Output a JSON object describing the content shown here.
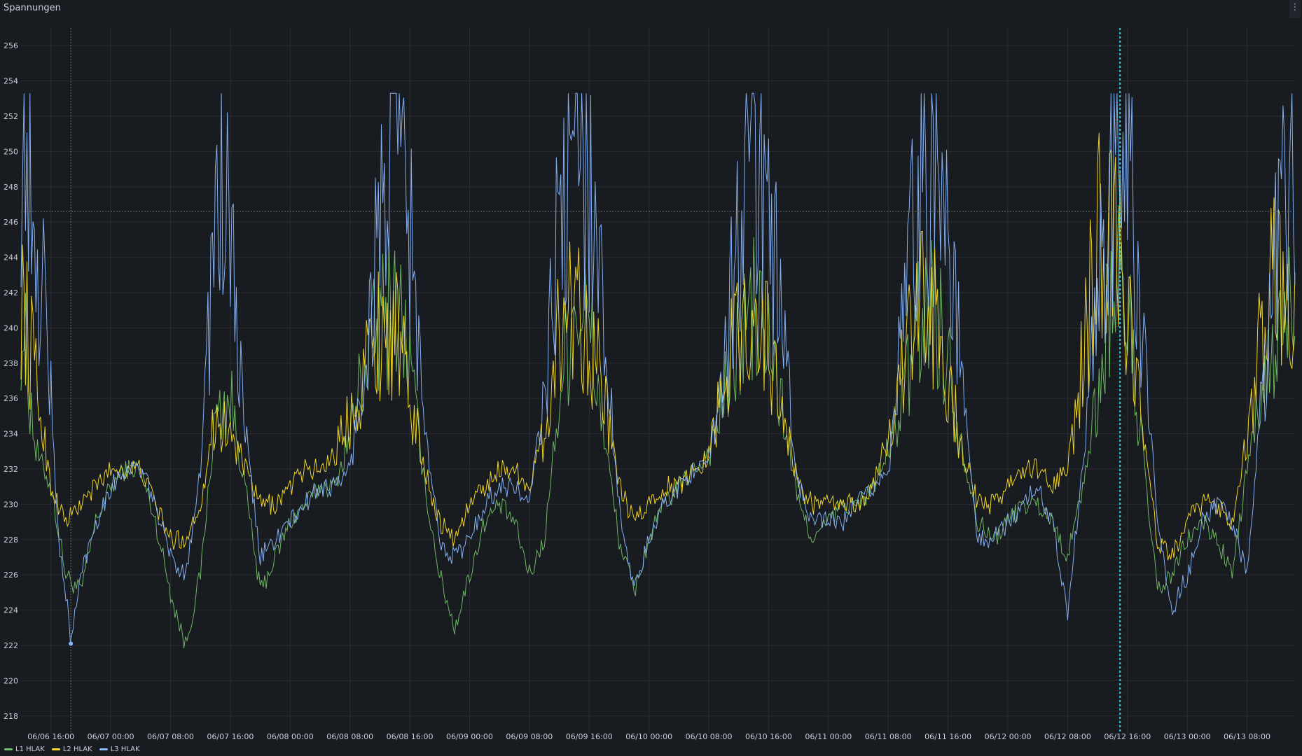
{
  "panel": {
    "title": "Spannungen",
    "menu_icon": "kebab-menu-icon"
  },
  "colors": {
    "background": "#181b1f",
    "grid": "#2a2d33",
    "L1": "#73bf69",
    "L2": "#fade2a",
    "L3": "#8ab8ff",
    "cursor": "#33d1e5",
    "hover_line": "#6e7280"
  },
  "chart_data": {
    "type": "line",
    "title": "Spannungen",
    "xlabel": "",
    "ylabel": "",
    "ylim": [
      217,
      257
    ],
    "yticks": [
      218,
      220,
      222,
      224,
      226,
      228,
      230,
      232,
      234,
      236,
      238,
      240,
      242,
      244,
      246,
      248,
      250,
      252,
      254,
      256
    ],
    "x_start": "06/06 12:00",
    "x_end": "06/13 14:30",
    "xticks": [
      "06/06 16:00",
      "06/07 00:00",
      "06/07 08:00",
      "06/07 16:00",
      "06/08 00:00",
      "06/08 08:00",
      "06/08 16:00",
      "06/09 00:00",
      "06/09 08:00",
      "06/09 16:00",
      "06/10 00:00",
      "06/10 08:00",
      "06/10 16:00",
      "06/11 00:00",
      "06/11 08:00",
      "06/11 16:00",
      "06/12 00:00",
      "06/12 08:00",
      "06/12 16:00",
      "06/13 00:00",
      "06/13 08:00"
    ],
    "grid": true,
    "legend_position": "bottom-left",
    "cursor_vertical_time": "06/12 15:00",
    "hover_vertical_time": "06/06 18:40",
    "hover_horizontal_value": 246.6,
    "series": [
      {
        "name": "L1 HLAK",
        "color": "#73bf69",
        "points": [
          [
            "06/06 12:00",
            241
          ],
          [
            "06/06 14:00",
            233
          ],
          [
            "06/06 16:00",
            231
          ],
          [
            "06/06 18:00",
            226
          ],
          [
            "06/06 20:00",
            225
          ],
          [
            "06/06 22:00",
            229
          ],
          [
            "06/07 00:00",
            231
          ],
          [
            "06/07 02:00",
            232
          ],
          [
            "06/07 04:00",
            232
          ],
          [
            "06/07 06:00",
            229
          ],
          [
            "06/07 08:00",
            225
          ],
          [
            "06/07 10:00",
            222
          ],
          [
            "06/07 12:00",
            226
          ],
          [
            "06/07 14:00",
            235
          ],
          [
            "06/07 16:00",
            236
          ],
          [
            "06/07 18:00",
            231
          ],
          [
            "06/07 20:00",
            225
          ],
          [
            "06/07 22:00",
            227
          ],
          [
            "06/08 00:00",
            229
          ],
          [
            "06/08 02:00",
            230
          ],
          [
            "06/08 04:00",
            231
          ],
          [
            "06/08 06:00",
            231
          ],
          [
            "06/08 08:00",
            234
          ],
          [
            "06/08 10:00",
            238
          ],
          [
            "06/08 12:00",
            240
          ],
          [
            "06/08 14:00",
            242
          ],
          [
            "06/08 16:00",
            238
          ],
          [
            "06/08 18:00",
            231
          ],
          [
            "06/08 20:00",
            226
          ],
          [
            "06/08 22:00",
            223
          ],
          [
            "06/09 00:00",
            226
          ],
          [
            "06/09 02:00",
            229
          ],
          [
            "06/09 04:00",
            230
          ],
          [
            "06/09 06:00",
            229
          ],
          [
            "06/09 08:00",
            226
          ],
          [
            "06/09 10:00",
            228
          ],
          [
            "06/09 12:00",
            236
          ],
          [
            "06/09 14:00",
            242
          ],
          [
            "06/09 16:00",
            240
          ],
          [
            "06/09 18:00",
            234
          ],
          [
            "06/09 20:00",
            228
          ],
          [
            "06/09 22:00",
            225
          ],
          [
            "06/10 00:00",
            228
          ],
          [
            "06/10 02:00",
            230
          ],
          [
            "06/10 04:00",
            231
          ],
          [
            "06/10 06:00",
            232
          ],
          [
            "06/10 08:00",
            233
          ],
          [
            "06/10 10:00",
            236
          ],
          [
            "06/10 12:00",
            239
          ],
          [
            "06/10 14:00",
            241
          ],
          [
            "06/10 16:00",
            239
          ],
          [
            "06/10 18:00",
            235
          ],
          [
            "06/10 20:00",
            230
          ],
          [
            "06/10 22:00",
            228
          ],
          [
            "06/11 00:00",
            229
          ],
          [
            "06/11 02:00",
            230
          ],
          [
            "06/11 04:00",
            230
          ],
          [
            "06/11 06:00",
            231
          ],
          [
            "06/11 08:00",
            233
          ],
          [
            "06/11 10:00",
            236
          ],
          [
            "06/11 12:00",
            240
          ],
          [
            "06/11 14:00",
            242
          ],
          [
            "06/11 16:00",
            238
          ],
          [
            "06/11 18:00",
            233
          ],
          [
            "06/11 20:00",
            229
          ],
          [
            "06/11 22:00",
            228
          ],
          [
            "06/12 00:00",
            229
          ],
          [
            "06/12 02:00",
            230
          ],
          [
            "06/12 04:00",
            230
          ],
          [
            "06/12 06:00",
            229
          ],
          [
            "06/12 08:00",
            227
          ],
          [
            "06/12 10:00",
            231
          ],
          [
            "06/12 12:00",
            236
          ],
          [
            "06/12 14:00",
            243
          ],
          [
            "06/12 16:00",
            241
          ],
          [
            "06/12 18:00",
            233
          ],
          [
            "06/12 20:00",
            225
          ],
          [
            "06/12 22:00",
            226
          ],
          [
            "06/13 00:00",
            228
          ],
          [
            "06/13 02:00",
            229
          ],
          [
            "06/13 04:00",
            228
          ],
          [
            "06/13 06:00",
            226
          ],
          [
            "06/13 08:00",
            232
          ],
          [
            "06/13 10:00",
            236
          ],
          [
            "06/13 12:00",
            239
          ],
          [
            "06/13 14:30",
            242
          ]
        ]
      },
      {
        "name": "L2 HLAK",
        "color": "#fade2a",
        "points": [
          [
            "06/06 12:00",
            242
          ],
          [
            "06/06 14:00",
            237
          ],
          [
            "06/06 16:00",
            231
          ],
          [
            "06/06 18:00",
            229
          ],
          [
            "06/06 20:00",
            230
          ],
          [
            "06/06 22:00",
            231
          ],
          [
            "06/07 00:00",
            232
          ],
          [
            "06/07 02:00",
            232
          ],
          [
            "06/07 04:00",
            232
          ],
          [
            "06/07 06:00",
            230
          ],
          [
            "06/07 08:00",
            228
          ],
          [
            "06/07 10:00",
            228
          ],
          [
            "06/07 12:00",
            230
          ],
          [
            "06/07 14:00",
            235
          ],
          [
            "06/07 16:00",
            234
          ],
          [
            "06/07 18:00",
            232
          ],
          [
            "06/07 20:00",
            230
          ],
          [
            "06/07 22:00",
            230
          ],
          [
            "06/08 00:00",
            231
          ],
          [
            "06/08 02:00",
            232
          ],
          [
            "06/08 04:00",
            232
          ],
          [
            "06/08 06:00",
            233
          ],
          [
            "06/08 08:00",
            235
          ],
          [
            "06/08 10:00",
            238
          ],
          [
            "06/08 12:00",
            240
          ],
          [
            "06/08 14:00",
            240
          ],
          [
            "06/08 16:00",
            236
          ],
          [
            "06/08 18:00",
            232
          ],
          [
            "06/08 20:00",
            229
          ],
          [
            "06/08 22:00",
            228
          ],
          [
            "06/09 00:00",
            230
          ],
          [
            "06/09 02:00",
            231
          ],
          [
            "06/09 04:00",
            232
          ],
          [
            "06/09 06:00",
            232
          ],
          [
            "06/09 08:00",
            231
          ],
          [
            "06/09 10:00",
            234
          ],
          [
            "06/09 12:00",
            240
          ],
          [
            "06/09 14:00",
            242
          ],
          [
            "06/09 16:00",
            240
          ],
          [
            "06/09 18:00",
            236
          ],
          [
            "06/09 20:00",
            231
          ],
          [
            "06/09 22:00",
            229
          ],
          [
            "06/10 00:00",
            230
          ],
          [
            "06/10 02:00",
            231
          ],
          [
            "06/10 04:00",
            231
          ],
          [
            "06/10 06:00",
            232
          ],
          [
            "06/10 08:00",
            233
          ],
          [
            "06/10 10:00",
            237
          ],
          [
            "06/10 12:00",
            240
          ],
          [
            "06/10 14:00",
            241
          ],
          [
            "06/10 16:00",
            239
          ],
          [
            "06/10 18:00",
            235
          ],
          [
            "06/10 20:00",
            231
          ],
          [
            "06/10 22:00",
            230
          ],
          [
            "06/11 00:00",
            230
          ],
          [
            "06/11 02:00",
            230
          ],
          [
            "06/11 04:00",
            230
          ],
          [
            "06/11 06:00",
            231
          ],
          [
            "06/11 08:00",
            234
          ],
          [
            "06/11 10:00",
            238
          ],
          [
            "06/11 12:00",
            241
          ],
          [
            "06/11 14:00",
            241
          ],
          [
            "06/11 16:00",
            237
          ],
          [
            "06/11 18:00",
            233
          ],
          [
            "06/11 20:00",
            230
          ],
          [
            "06/11 22:00",
            230
          ],
          [
            "06/12 00:00",
            231
          ],
          [
            "06/12 02:00",
            232
          ],
          [
            "06/12 04:00",
            232
          ],
          [
            "06/12 06:00",
            231
          ],
          [
            "06/12 08:00",
            232
          ],
          [
            "06/12 10:00",
            238
          ],
          [
            "06/12 12:00",
            245
          ],
          [
            "06/12 14:00",
            246
          ],
          [
            "06/12 16:00",
            242
          ],
          [
            "06/12 18:00",
            234
          ],
          [
            "06/12 20:00",
            228
          ],
          [
            "06/12 22:00",
            227
          ],
          [
            "06/13 00:00",
            229
          ],
          [
            "06/13 02:00",
            230
          ],
          [
            "06/13 04:00",
            230
          ],
          [
            "06/13 06:00",
            229
          ],
          [
            "06/13 08:00",
            234
          ],
          [
            "06/13 10:00",
            240
          ],
          [
            "06/13 12:00",
            243
          ],
          [
            "06/13 14:30",
            241
          ]
        ]
      },
      {
        "name": "L3 HLAK",
        "color": "#8ab8ff",
        "points": [
          [
            "06/06 12:00",
            251
          ],
          [
            "06/06 13:00",
            252
          ],
          [
            "06/06 14:00",
            240
          ],
          [
            "06/06 15:00",
            244
          ],
          [
            "06/06 16:00",
            236
          ],
          [
            "06/06 17:00",
            228
          ],
          [
            "06/06 18:00",
            225
          ],
          [
            "06/06 18:40",
            222.1
          ],
          [
            "06/06 20:00",
            226
          ],
          [
            "06/06 22:00",
            229
          ],
          [
            "06/07 00:00",
            231
          ],
          [
            "06/07 02:00",
            232
          ],
          [
            "06/07 04:00",
            232
          ],
          [
            "06/07 06:00",
            230
          ],
          [
            "06/07 08:00",
            227
          ],
          [
            "06/07 10:00",
            226
          ],
          [
            "06/07 12:00",
            232
          ],
          [
            "06/07 14:00",
            246
          ],
          [
            "06/07 15:00",
            249
          ],
          [
            "06/07 16:00",
            244
          ],
          [
            "06/07 18:00",
            234
          ],
          [
            "06/07 20:00",
            227
          ],
          [
            "06/07 22:00",
            228
          ],
          [
            "06/08 00:00",
            229
          ],
          [
            "06/08 02:00",
            230
          ],
          [
            "06/08 04:00",
            231
          ],
          [
            "06/08 06:00",
            231
          ],
          [
            "06/08 08:00",
            232
          ],
          [
            "06/08 10:00",
            238
          ],
          [
            "06/08 12:00",
            246
          ],
          [
            "06/08 14:00",
            252
          ],
          [
            "06/08 16:00",
            246
          ],
          [
            "06/08 18:00",
            234
          ],
          [
            "06/08 20:00",
            228
          ],
          [
            "06/08 22:00",
            227
          ],
          [
            "06/09 00:00",
            228
          ],
          [
            "06/09 02:00",
            230
          ],
          [
            "06/09 04:00",
            231
          ],
          [
            "06/09 06:00",
            231
          ],
          [
            "06/09 08:00",
            230
          ],
          [
            "06/09 10:00",
            236
          ],
          [
            "06/09 12:00",
            246
          ],
          [
            "06/09 14:00",
            250
          ],
          [
            "06/09 16:00",
            249
          ],
          [
            "06/09 18:00",
            240
          ],
          [
            "06/09 20:00",
            230
          ],
          [
            "06/09 22:00",
            225
          ],
          [
            "06/10 00:00",
            228
          ],
          [
            "06/10 02:00",
            230
          ],
          [
            "06/10 04:00",
            231
          ],
          [
            "06/10 06:00",
            232
          ],
          [
            "06/10 08:00",
            232
          ],
          [
            "06/10 10:00",
            238
          ],
          [
            "06/10 12:00",
            246
          ],
          [
            "06/10 14:00",
            251
          ],
          [
            "06/10 16:00",
            247
          ],
          [
            "06/10 18:00",
            239
          ],
          [
            "06/10 20:00",
            231
          ],
          [
            "06/10 22:00",
            229
          ],
          [
            "06/11 00:00",
            229
          ],
          [
            "06/11 02:00",
            229
          ],
          [
            "06/11 04:00",
            230
          ],
          [
            "06/11 06:00",
            231
          ],
          [
            "06/11 08:00",
            232
          ],
          [
            "06/11 10:00",
            240
          ],
          [
            "06/11 12:00",
            249
          ],
          [
            "06/11 14:00",
            250
          ],
          [
            "06/11 16:00",
            246
          ],
          [
            "06/11 18:00",
            236
          ],
          [
            "06/11 20:00",
            228
          ],
          [
            "06/11 22:00",
            228
          ],
          [
            "06/12 00:00",
            229
          ],
          [
            "06/12 02:00",
            230
          ],
          [
            "06/12 04:00",
            231
          ],
          [
            "06/12 06:00",
            229
          ],
          [
            "06/12 08:00",
            224
          ],
          [
            "06/12 10:00",
            232
          ],
          [
            "06/12 12:00",
            242
          ],
          [
            "06/12 14:00",
            249
          ],
          [
            "06/12 15:00",
            253
          ],
          [
            "06/12 16:00",
            250
          ],
          [
            "06/12 18:00",
            240
          ],
          [
            "06/12 20:00",
            229
          ],
          [
            "06/12 22:00",
            224
          ],
          [
            "06/13 00:00",
            226
          ],
          [
            "06/13 02:00",
            229
          ],
          [
            "06/13 04:00",
            230
          ],
          [
            "06/13 06:00",
            229
          ],
          [
            "06/13 08:00",
            226
          ],
          [
            "06/13 10:00",
            236
          ],
          [
            "06/13 12:00",
            244
          ],
          [
            "06/13 14:00",
            249
          ],
          [
            "06/13 14:30",
            247
          ]
        ]
      }
    ]
  }
}
